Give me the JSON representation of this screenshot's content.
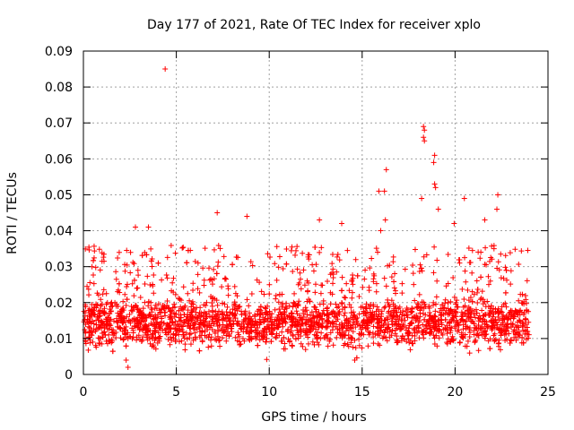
{
  "chart_data": {
    "type": "scatter",
    "title": "Day 177 of 2021, Rate Of TEC Index for receiver xplo",
    "xlabel": "GPS time / hours",
    "ylabel": "ROTI / TECUs",
    "xlim": [
      0,
      25
    ],
    "ylim": [
      0,
      0.09
    ],
    "xticks": [
      0,
      5,
      10,
      15,
      20,
      25
    ],
    "yticks": [
      0,
      0.01,
      0.02,
      0.03,
      0.04,
      0.05,
      0.06,
      0.07,
      0.08,
      0.09
    ],
    "xtick_labels": [
      "0",
      "5",
      "10",
      "15",
      "20",
      "25"
    ],
    "ytick_labels": [
      "0",
      "0.01",
      "0.02",
      "0.03",
      "0.04",
      "0.05",
      "0.06",
      "0.07",
      "0.08",
      "0.09"
    ],
    "grid": true,
    "marker": "+",
    "series_color": "#ff0000",
    "data_range_hours": [
      0,
      24
    ],
    "typical_band": [
      0.007,
      0.022
    ],
    "outliers": [
      {
        "x": 4.4,
        "y": 0.085
      },
      {
        "x": 18.3,
        "y": 0.069
      },
      {
        "x": 18.35,
        "y": 0.068
      },
      {
        "x": 18.3,
        "y": 0.066
      },
      {
        "x": 18.35,
        "y": 0.065
      },
      {
        "x": 18.9,
        "y": 0.061
      },
      {
        "x": 18.85,
        "y": 0.059
      },
      {
        "x": 16.3,
        "y": 0.057
      },
      {
        "x": 18.9,
        "y": 0.053
      },
      {
        "x": 16.2,
        "y": 0.051
      },
      {
        "x": 15.9,
        "y": 0.051
      },
      {
        "x": 18.95,
        "y": 0.052
      },
      {
        "x": 22.3,
        "y": 0.05
      },
      {
        "x": 18.2,
        "y": 0.049
      },
      {
        "x": 20.5,
        "y": 0.049
      },
      {
        "x": 22.25,
        "y": 0.046
      },
      {
        "x": 19.1,
        "y": 0.046
      },
      {
        "x": 7.2,
        "y": 0.045
      },
      {
        "x": 8.8,
        "y": 0.044
      },
      {
        "x": 16.25,
        "y": 0.043
      },
      {
        "x": 12.7,
        "y": 0.043
      },
      {
        "x": 21.6,
        "y": 0.043
      },
      {
        "x": 13.9,
        "y": 0.042
      },
      {
        "x": 19.95,
        "y": 0.042
      },
      {
        "x": 2.8,
        "y": 0.041
      },
      {
        "x": 3.5,
        "y": 0.041
      },
      {
        "x": 16.0,
        "y": 0.04
      },
      {
        "x": 2.4,
        "y": 0.002
      },
      {
        "x": 2.3,
        "y": 0.004
      },
      {
        "x": 14.6,
        "y": 0.004
      }
    ]
  }
}
